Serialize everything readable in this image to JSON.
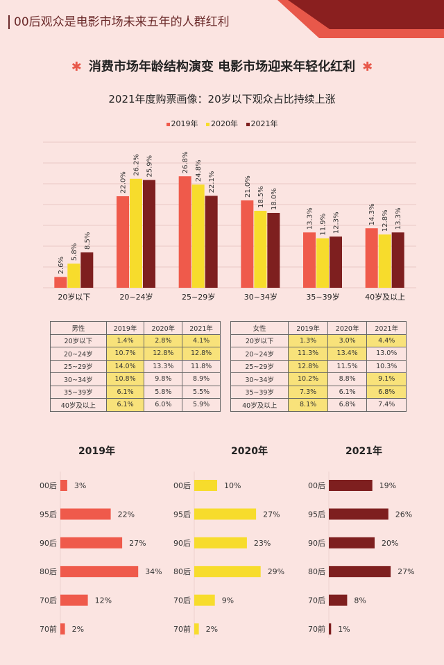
{
  "header": {
    "title": "00后观众是电影市场未来五年的人群红利"
  },
  "subtitle": {
    "text": "消费市场年龄结构演变 电影市场迎来年轻化红利",
    "star_icon": "asterisk-icon"
  },
  "colors": {
    "y2019": "#ef5a4b",
    "y2020": "#f7dc2c",
    "y2021": "#7e1f1f",
    "background": "#fbe4e1",
    "highlight": "#f8e27a"
  },
  "chart_data": [
    {
      "type": "bar",
      "title": "2021年度购票画像：20岁以下观众占比持续上涨",
      "legend": "top",
      "grid": true,
      "ylim": [
        0,
        35
      ],
      "categories": [
        "20岁以下",
        "20~24岁",
        "25~29岁",
        "30~34岁",
        "35~39岁",
        "40岁及以上"
      ],
      "series": [
        {
          "name": "2019年",
          "values": [
            2.6,
            22.0,
            26.8,
            21.0,
            13.3,
            14.3
          ],
          "labels": [
            "2.6%",
            "22.0%",
            "26.8%",
            "21.0%",
            "13.3%",
            "14.3%"
          ]
        },
        {
          "name": "2020年",
          "values": [
            5.8,
            26.2,
            24.8,
            18.5,
            11.9,
            12.8
          ],
          "labels": [
            "5.8%",
            "26.2%",
            "24.8%",
            "18.5%",
            "11.9%",
            "12.8%"
          ]
        },
        {
          "name": "2021年",
          "values": [
            8.5,
            25.9,
            22.1,
            18.0,
            12.3,
            13.3
          ],
          "labels": [
            "8.5%",
            "25.9%",
            "22.1%",
            "18.0%",
            "12.3%",
            "13.3%"
          ]
        }
      ]
    },
    {
      "type": "table",
      "headers": [
        "男性",
        "2019年",
        "2020年",
        "2021年"
      ],
      "rows": [
        [
          "20岁以下",
          "1.4%",
          "2.8%",
          "4.1%"
        ],
        [
          "20~24岁",
          "10.7%",
          "12.8%",
          "12.8%"
        ],
        [
          "25~29岁",
          "14.0%",
          "13.3%",
          "11.8%"
        ],
        [
          "30~34岁",
          "10.8%",
          "9.8%",
          "8.9%"
        ],
        [
          "35~39岁",
          "6.1%",
          "5.8%",
          "5.5%"
        ],
        [
          "40岁及以上",
          "6.1%",
          "6.0%",
          "5.9%"
        ]
      ],
      "highlighted": [
        [
          1,
          1,
          1
        ],
        [
          1,
          1,
          1
        ],
        [
          1,
          0,
          0
        ],
        [
          1,
          0,
          0
        ],
        [
          1,
          0,
          0
        ],
        [
          1,
          0,
          0
        ]
      ]
    },
    {
      "type": "table",
      "headers": [
        "女性",
        "2019年",
        "2020年",
        "2021年"
      ],
      "rows": [
        [
          "20岁以下",
          "1.3%",
          "3.0%",
          "4.4%"
        ],
        [
          "20~24岁",
          "11.3%",
          "13.4%",
          "13.0%"
        ],
        [
          "25~29岁",
          "12.8%",
          "11.5%",
          "10.3%"
        ],
        [
          "30~34岁",
          "10.2%",
          "8.8%",
          "9.1%"
        ],
        [
          "35~39岁",
          "7.3%",
          "6.1%",
          "6.8%"
        ],
        [
          "40岁及以上",
          "8.1%",
          "6.8%",
          "7.4%"
        ]
      ],
      "highlighted": [
        [
          1,
          1,
          1
        ],
        [
          1,
          1,
          0
        ],
        [
          1,
          0,
          0
        ],
        [
          1,
          0,
          1
        ],
        [
          1,
          0,
          1
        ],
        [
          1,
          0,
          0
        ]
      ]
    },
    {
      "type": "bar",
      "orientation": "horizontal",
      "title": "2019年",
      "categories": [
        "00后",
        "95后",
        "90后",
        "80后",
        "70后",
        "70前"
      ],
      "values": [
        3,
        22,
        27,
        34,
        12,
        2
      ],
      "labels": [
        "3%",
        "22%",
        "27%",
        "34%",
        "12%",
        "2%"
      ]
    },
    {
      "type": "bar",
      "orientation": "horizontal",
      "title": "2020年",
      "categories": [
        "00后",
        "95后",
        "90后",
        "80后",
        "70后",
        "70前"
      ],
      "values": [
        10,
        27,
        23,
        29,
        9,
        2
      ],
      "labels": [
        "10%",
        "27%",
        "23%",
        "29%",
        "9%",
        "2%"
      ]
    },
    {
      "type": "bar",
      "orientation": "horizontal",
      "title": "2021年",
      "categories": [
        "00后",
        "95后",
        "90后",
        "80后",
        "70后",
        "70前"
      ],
      "values": [
        19,
        26,
        20,
        27,
        8,
        1
      ],
      "labels": [
        "19%",
        "26%",
        "20%",
        "27%",
        "8%",
        "1%"
      ]
    }
  ]
}
